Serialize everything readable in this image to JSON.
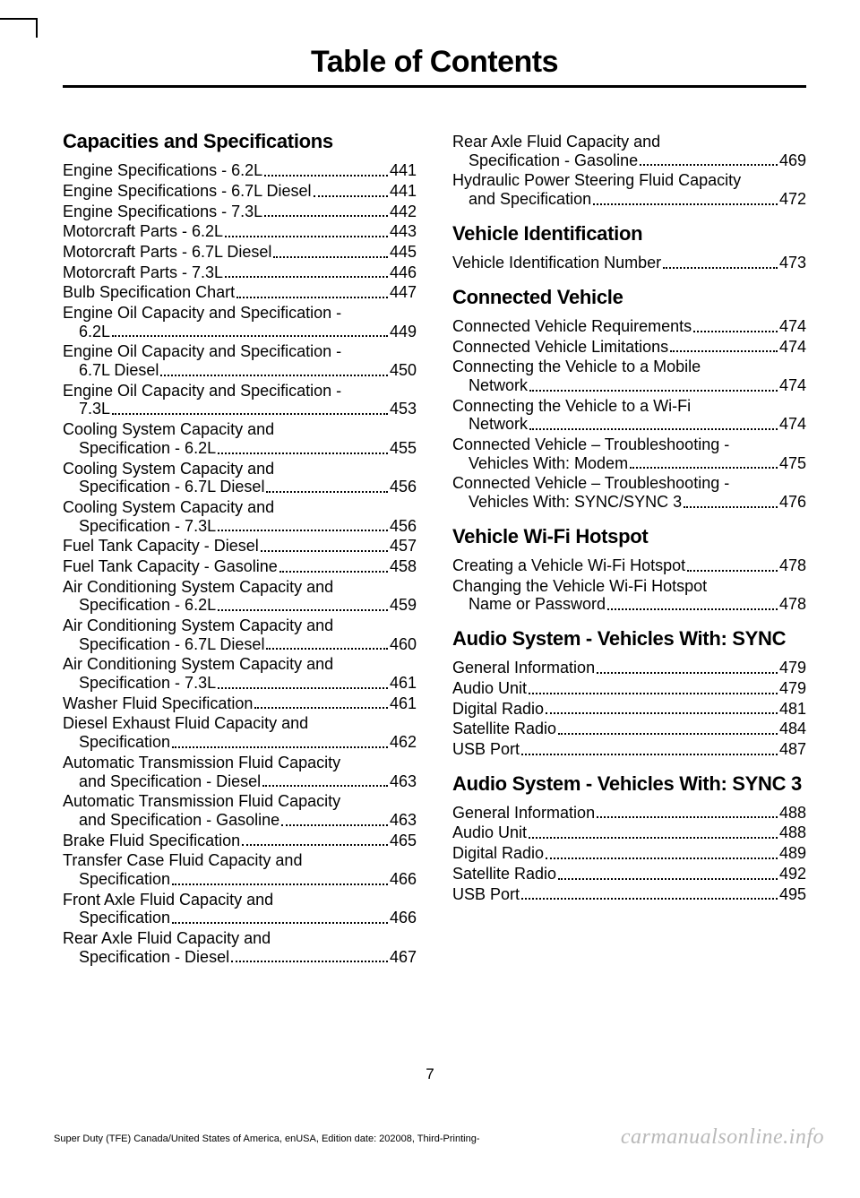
{
  "title": "Table of Contents",
  "page_number": "7",
  "footer_line": "Super Duty (TFE) Canada/United States of America, enUSA, Edition date: 202008, Third-Printing-",
  "watermark": "carmanualsonline.info",
  "left": {
    "sections": [
      {
        "heading": "Capacities and Specifications",
        "entries": [
          {
            "t": [
              "Engine Specifications - 6.2L"
            ],
            "p": "441"
          },
          {
            "t": [
              "Engine Specifications - 6.7L Diesel"
            ],
            "p": "441"
          },
          {
            "t": [
              "Engine Specifications - 7.3L"
            ],
            "p": "442"
          },
          {
            "t": [
              "Motorcraft Parts - 6.2L"
            ],
            "p": "443"
          },
          {
            "t": [
              "Motorcraft Parts - 6.7L Diesel"
            ],
            "p": "445"
          },
          {
            "t": [
              "Motorcraft Parts - 7.3L"
            ],
            "p": "446"
          },
          {
            "t": [
              "Bulb Specification Chart"
            ],
            "p": "447"
          },
          {
            "t": [
              "Engine Oil Capacity and Specification -",
              "6.2L"
            ],
            "p": "449"
          },
          {
            "t": [
              "Engine Oil Capacity and Specification -",
              "6.7L Diesel"
            ],
            "p": "450"
          },
          {
            "t": [
              "Engine Oil Capacity and Specification -",
              "7.3L"
            ],
            "p": "453"
          },
          {
            "t": [
              "Cooling System Capacity and",
              "Specification - 6.2L"
            ],
            "p": "455"
          },
          {
            "t": [
              "Cooling System Capacity and",
              "Specification - 6.7L Diesel"
            ],
            "p": "456"
          },
          {
            "t": [
              "Cooling System Capacity and",
              "Specification - 7.3L"
            ],
            "p": "456"
          },
          {
            "t": [
              "Fuel Tank Capacity - Diesel"
            ],
            "p": "457"
          },
          {
            "t": [
              "Fuel Tank Capacity - Gasoline"
            ],
            "p": "458"
          },
          {
            "t": [
              "Air Conditioning System Capacity and",
              "Specification - 6.2L"
            ],
            "p": "459"
          },
          {
            "t": [
              "Air Conditioning System Capacity and",
              "Specification - 6.7L Diesel"
            ],
            "p": "460"
          },
          {
            "t": [
              "Air Conditioning System Capacity and",
              "Specification - 7.3L"
            ],
            "p": "461"
          },
          {
            "t": [
              "Washer Fluid Specification"
            ],
            "p": "461"
          },
          {
            "t": [
              "Diesel Exhaust Fluid Capacity and",
              "Specification"
            ],
            "p": "462"
          },
          {
            "t": [
              "Automatic Transmission Fluid Capacity",
              "and Specification - Diesel"
            ],
            "p": "463"
          },
          {
            "t": [
              "Automatic Transmission Fluid Capacity",
              "and Specification - Gasoline"
            ],
            "p": "463"
          },
          {
            "t": [
              "Brake Fluid Specification"
            ],
            "p": "465"
          },
          {
            "t": [
              "Transfer Case Fluid Capacity and",
              "Specification"
            ],
            "p": "466"
          },
          {
            "t": [
              "Front Axle Fluid Capacity and",
              "Specification"
            ],
            "p": "466"
          },
          {
            "t": [
              "Rear Axle Fluid Capacity and",
              "Specification - Diesel"
            ],
            "p": "467"
          }
        ]
      }
    ]
  },
  "right": {
    "pre_entries": [
      {
        "t": [
          "Rear Axle Fluid Capacity and",
          "Specification - Gasoline"
        ],
        "p": "469"
      },
      {
        "t": [
          "Hydraulic Power Steering Fluid Capacity",
          "and Specification"
        ],
        "p": "472"
      }
    ],
    "sections": [
      {
        "heading": "Vehicle Identification",
        "entries": [
          {
            "t": [
              "Vehicle Identification Number"
            ],
            "p": "473"
          }
        ]
      },
      {
        "heading": "Connected Vehicle",
        "entries": [
          {
            "t": [
              "Connected Vehicle Requirements"
            ],
            "p": "474"
          },
          {
            "t": [
              "Connected Vehicle Limitations"
            ],
            "p": "474"
          },
          {
            "t": [
              "Connecting the Vehicle to a Mobile",
              "Network"
            ],
            "p": "474"
          },
          {
            "t": [
              "Connecting the Vehicle to a Wi-Fi",
              "Network"
            ],
            "p": "474"
          },
          {
            "t": [
              "Connected Vehicle – Troubleshooting -",
              "Vehicles With: Modem"
            ],
            "p": "475"
          },
          {
            "t": [
              "Connected Vehicle – Troubleshooting -",
              "Vehicles With: SYNC/SYNC 3"
            ],
            "p": "476"
          }
        ]
      },
      {
        "heading": "Vehicle Wi-Fi Hotspot",
        "entries": [
          {
            "t": [
              "Creating a Vehicle Wi-Fi Hotspot"
            ],
            "p": "478"
          },
          {
            "t": [
              "Changing the Vehicle Wi-Fi Hotspot",
              "Name or Password"
            ],
            "p": "478"
          }
        ]
      },
      {
        "heading": "Audio System - Vehicles With: SYNC",
        "entries": [
          {
            "t": [
              "General Information"
            ],
            "p": "479"
          },
          {
            "t": [
              "Audio Unit"
            ],
            "p": "479"
          },
          {
            "t": [
              "Digital Radio"
            ],
            "p": "481"
          },
          {
            "t": [
              "Satellite Radio"
            ],
            "p": "484"
          },
          {
            "t": [
              "USB Port"
            ],
            "p": "487"
          }
        ]
      },
      {
        "heading": "Audio System - Vehicles With: SYNC 3",
        "entries": [
          {
            "t": [
              "General Information"
            ],
            "p": "488"
          },
          {
            "t": [
              "Audio Unit"
            ],
            "p": "488"
          },
          {
            "t": [
              "Digital Radio"
            ],
            "p": "489"
          },
          {
            "t": [
              "Satellite Radio"
            ],
            "p": "492"
          },
          {
            "t": [
              "USB Port"
            ],
            "p": "495"
          }
        ]
      }
    ]
  }
}
